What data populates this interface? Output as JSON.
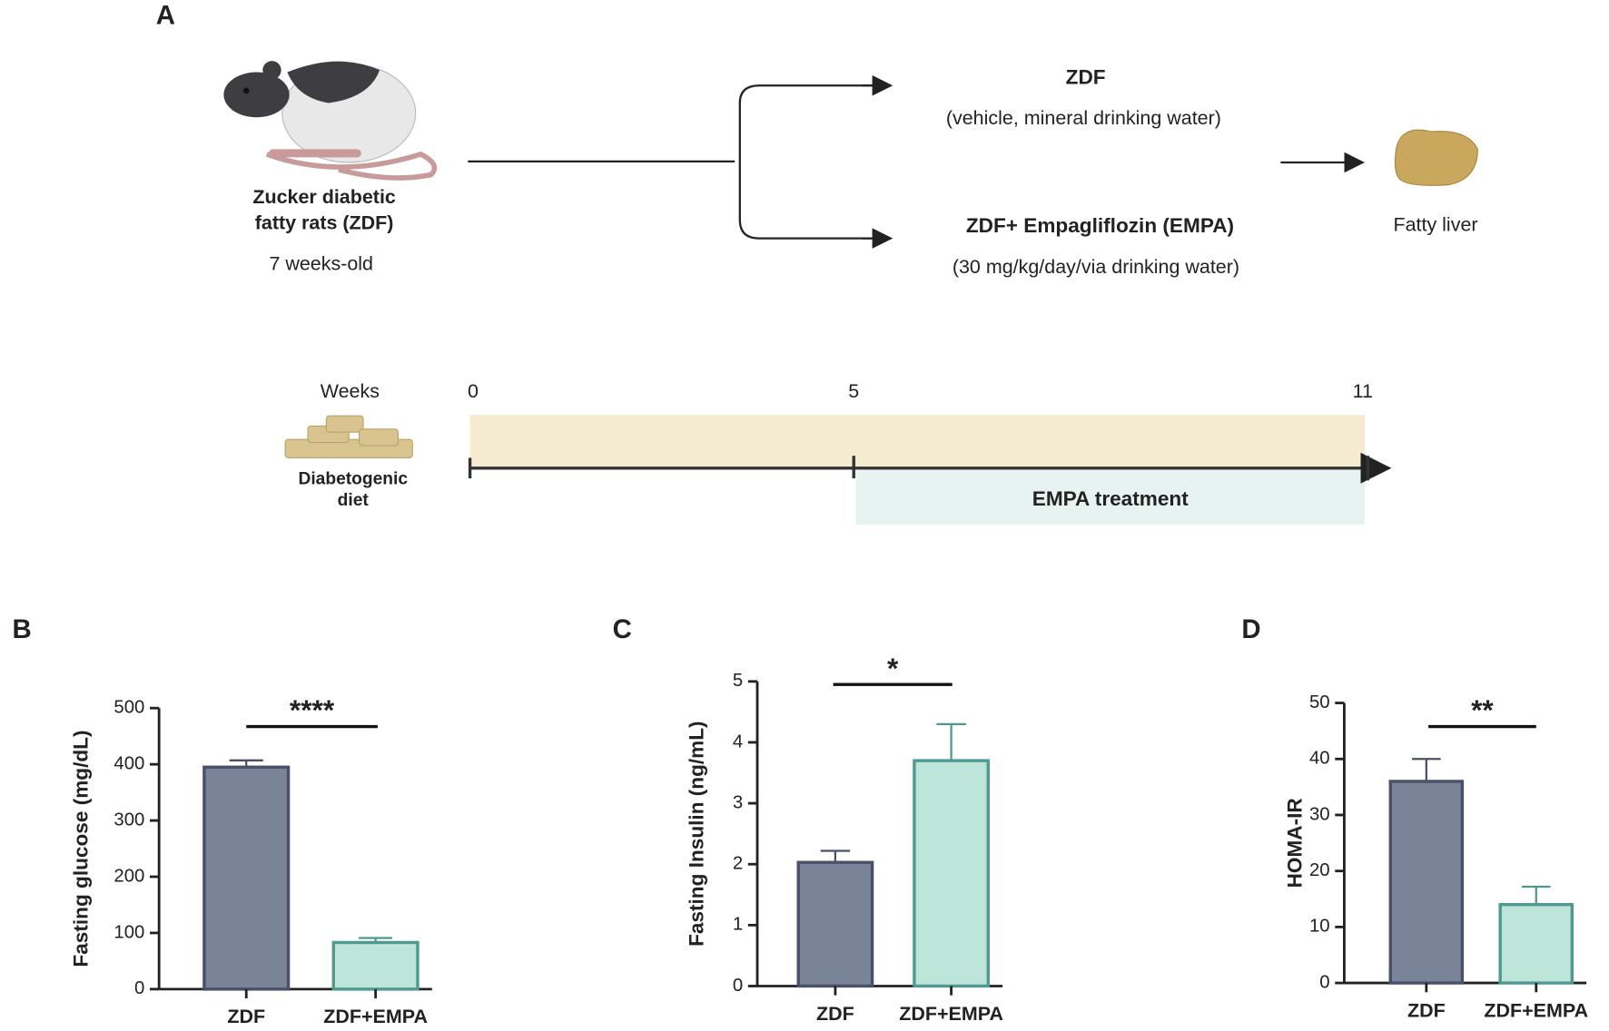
{
  "diagram": {
    "panel": "A",
    "rat_title": [
      "Zucker diabetic",
      "fatty rats (ZDF)"
    ],
    "rat_age": "7 weeks-old",
    "group1": {
      "title": "ZDF",
      "detail": "(vehicle, mineral drinking water)"
    },
    "group2": {
      "title": "ZDF+ Empagliflozin (EMPA)",
      "detail": "(30 mg/kg/day/via drinking water)"
    },
    "outcome": "Fatty liver",
    "timeline": {
      "unit": "Weeks",
      "ticks": [
        "0",
        "5",
        "11"
      ],
      "diet": [
        "Diabetogenic",
        "diet"
      ],
      "treatment": "EMPA treatment"
    }
  },
  "chart_data": [
    {
      "type": "bar",
      "panel": "B",
      "ylabel": "Fasting glucose (mg/dL)",
      "categories": [
        "ZDF",
        "ZDF+EMPA"
      ],
      "values": [
        395,
        83
      ],
      "errors": [
        12,
        8
      ],
      "colors": [
        "#7a8499",
        "#bde5d9"
      ],
      "edge_colors": [
        "#4a5068",
        "#4e9a90"
      ],
      "ylim": [
        0,
        500
      ],
      "yticks": [
        0,
        100,
        200,
        300,
        400,
        500
      ],
      "annotation": "****"
    },
    {
      "type": "bar",
      "panel": "C",
      "ylabel": "Fasting Insulin (ng/mL)",
      "categories": [
        "ZDF",
        "ZDF+EMPA"
      ],
      "values": [
        2.03,
        3.7
      ],
      "errors": [
        0.19,
        0.6
      ],
      "colors": [
        "#7a8499",
        "#bde5d9"
      ],
      "edge_colors": [
        "#4a5068",
        "#4e9a90"
      ],
      "ylim": [
        0,
        5
      ],
      "yticks": [
        0,
        1,
        2,
        3,
        4,
        5
      ],
      "annotation": "*"
    },
    {
      "type": "bar",
      "panel": "D",
      "ylabel": "HOMA-IR",
      "categories": [
        "ZDF",
        "ZDF+EMPA"
      ],
      "values": [
        36,
        14
      ],
      "errors": [
        4,
        3.2
      ],
      "colors": [
        "#7a8499",
        "#bde5d9"
      ],
      "edge_colors": [
        "#4a5068",
        "#4e9a90"
      ],
      "ylim": [
        0,
        50
      ],
      "yticks": [
        0,
        10,
        20,
        30,
        40,
        50
      ],
      "annotation": "**"
    }
  ]
}
